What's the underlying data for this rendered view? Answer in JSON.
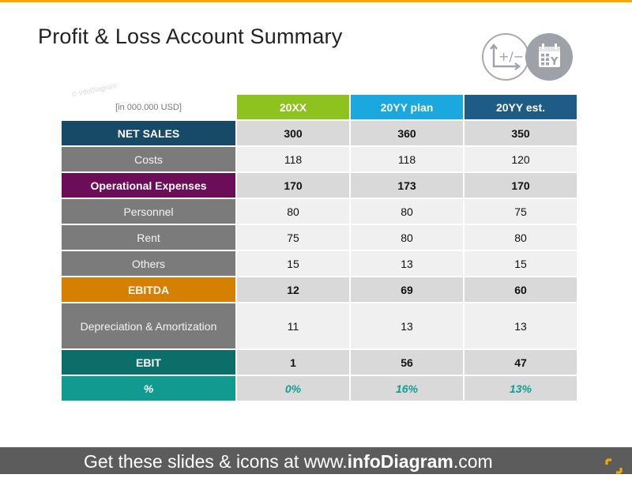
{
  "title": "Profit & Loss Account Summary",
  "icons": [
    "plus-minus-chart-icon",
    "calendar-icon"
  ],
  "watermark": "© infoDiagram",
  "table": {
    "unit_label": "[in 000.000 USD]",
    "columns": [
      {
        "label": "20XX",
        "color": "#8dc21f"
      },
      {
        "label": "20YY plan",
        "color": "#1ba8df"
      },
      {
        "label": "20YY est.",
        "color": "#1e5c86"
      }
    ],
    "rows": [
      {
        "label": "NET SALES",
        "values": [
          "300",
          "360",
          "350"
        ],
        "style": "bold",
        "color": "#164a66"
      },
      {
        "label": "Costs",
        "values": [
          "118",
          "118",
          "120"
        ],
        "style": "sub",
        "color": "#7b7b7b"
      },
      {
        "label": "Operational Expenses",
        "values": [
          "170",
          "173",
          "170"
        ],
        "style": "bold",
        "color": "#6b0d57"
      },
      {
        "label": "Personnel",
        "values": [
          "80",
          "80",
          "75"
        ],
        "style": "sub",
        "color": "#7b7b7b"
      },
      {
        "label": "Rent",
        "values": [
          "75",
          "80",
          "80"
        ],
        "style": "sub",
        "color": "#7b7b7b"
      },
      {
        "label": "Others",
        "values": [
          "15",
          "13",
          "15"
        ],
        "style": "sub",
        "color": "#7b7b7b"
      },
      {
        "label": "EBITDA",
        "values": [
          "12",
          "69",
          "60"
        ],
        "style": "bold",
        "color": "#d68000"
      },
      {
        "label": "Depreciation & Amortization",
        "values": [
          "11",
          "13",
          "13"
        ],
        "style": "sub",
        "color": "#7b7b7b"
      },
      {
        "label": "EBIT",
        "values": [
          "1",
          "56",
          "47"
        ],
        "style": "bold",
        "color": "#0c6e69"
      },
      {
        "label": "%",
        "values": [
          "0%",
          "16%",
          "13%"
        ],
        "style": "pct",
        "color": "#119a90"
      }
    ]
  },
  "footer": {
    "prefix": "Get these slides & icons at www.",
    "brand": "infoDiagram",
    "suffix": ".com"
  }
}
